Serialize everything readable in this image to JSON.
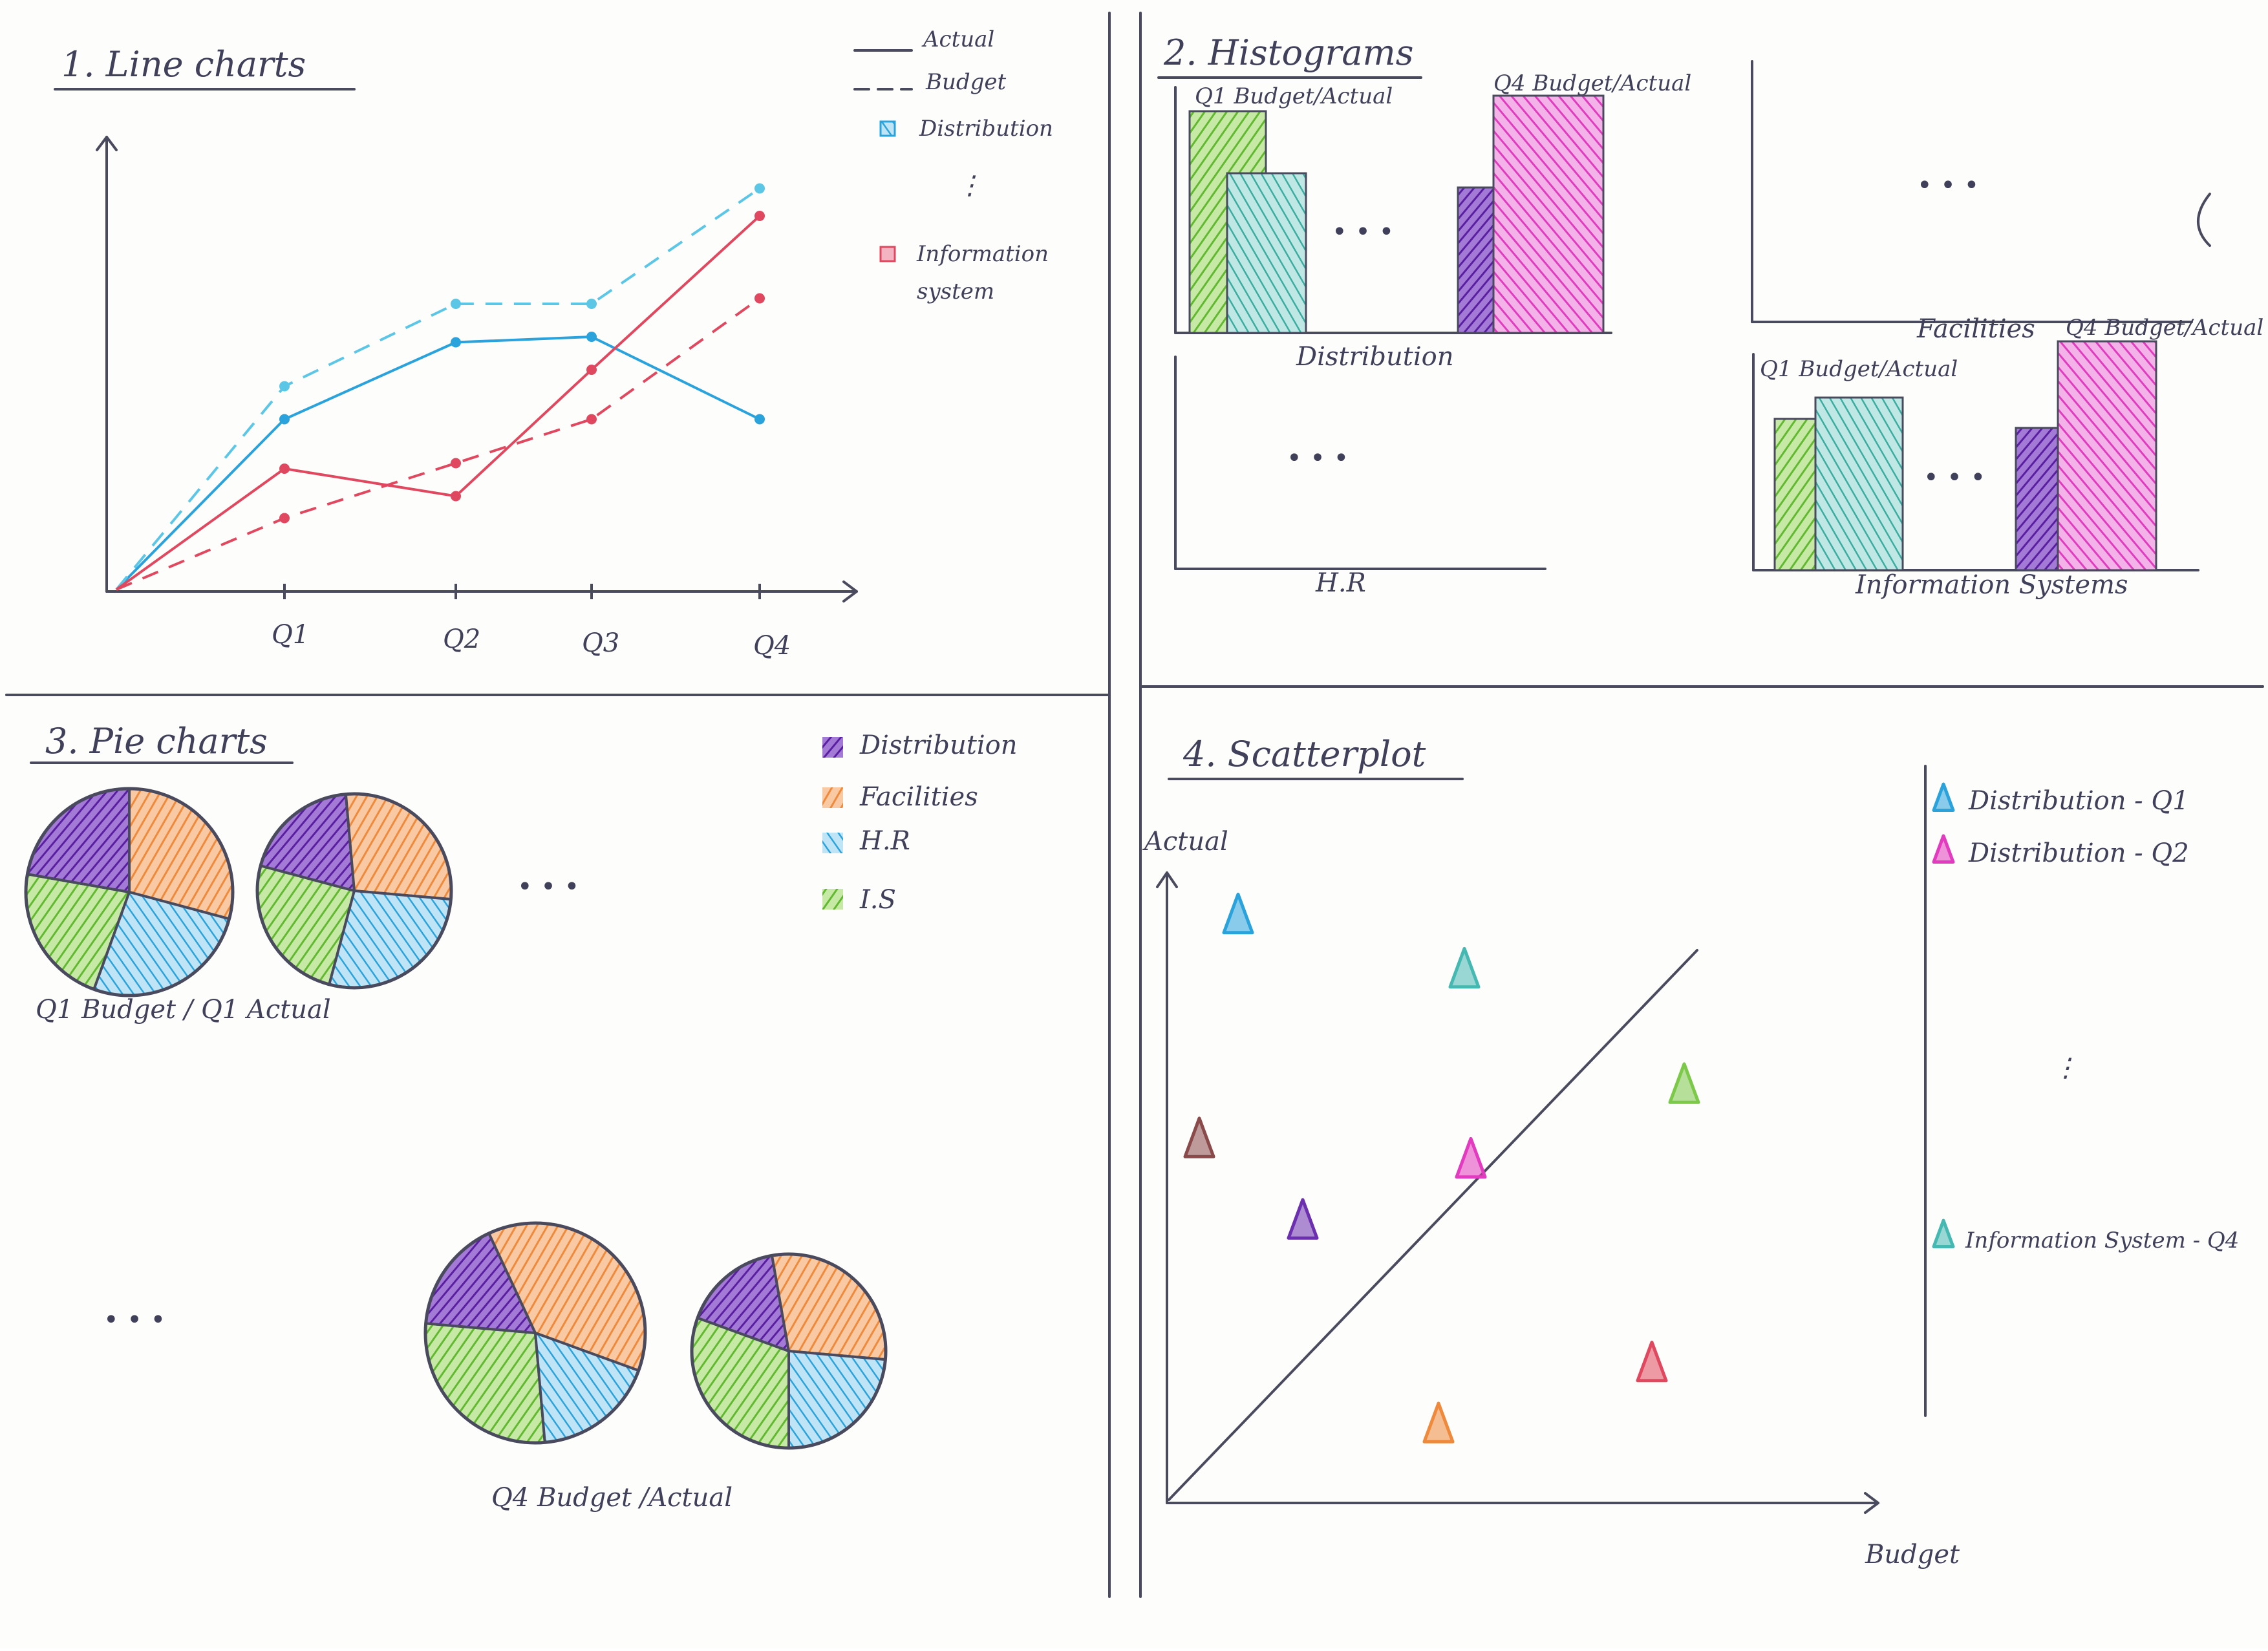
{
  "colors": {
    "blue": "#2aa2dc",
    "blue_light": "#5cc6e6",
    "red": "#e0485f",
    "green": "#7cc94a",
    "teal": "#45b8b2",
    "purple": "#6b2fb0",
    "magenta": "#e23bbf",
    "orange": "#ef8a3c",
    "brown": "#8a4a4a",
    "ink": "#4a4a5e"
  },
  "panel1": {
    "title": "1. Line charts",
    "legend": {
      "actual": "Actual",
      "budget": "Budget",
      "distribution": "Distribution",
      "dots": "⋮",
      "information_system_line1": "Information",
      "information_system_line2": "system"
    },
    "x_ticks": [
      "Q1",
      "Q2",
      "Q3",
      "Q4"
    ],
    "chart_data": {
      "type": "line",
      "categories": [
        "0",
        "Q1",
        "Q2",
        "Q3",
        "Q4"
      ],
      "series": [
        {
          "name": "Distribution",
          "style": "Actual",
          "color": "#2aa2dc",
          "values": [
            0,
            3.1,
            4.5,
            4.6,
            3.1
          ]
        },
        {
          "name": "Distribution",
          "style": "Budget",
          "color": "#5cc6e6",
          "values": [
            0,
            3.7,
            5.2,
            5.2,
            7.3
          ]
        },
        {
          "name": "Information system",
          "style": "Actual",
          "color": "#e0485f",
          "values": [
            0,
            2.2,
            1.7,
            4.0,
            6.8
          ]
        },
        {
          "name": "Information system",
          "style": "Budget",
          "color": "#e0485f",
          "values": [
            0,
            1.3,
            2.3,
            3.1,
            5.3
          ]
        }
      ]
    }
  },
  "panel2": {
    "title": "2. Histograms",
    "distribution": {
      "label": "Distribution",
      "q1_label": "Q1 Budget/Actual",
      "q4_label": "Q4 Budget/Actual",
      "dots": "• • •"
    },
    "facilities": {
      "label": "Facilities",
      "dots": "• • •"
    },
    "hr": {
      "label": "H.R",
      "dots": "• • •"
    },
    "is": {
      "label": "Information Systems",
      "q1_label": "Q1 Budget/Actual",
      "q4_label": "Q4 Budget/Actual",
      "dots": "• • •"
    }
  },
  "panel3": {
    "title": "3. Pie charts",
    "legend": [
      "Distribution",
      "Facilities",
      "H.R",
      "I.S"
    ],
    "legend_colors": [
      "#6b2fb0",
      "#ef8a3c",
      "#2aa2dc",
      "#7cc94a"
    ],
    "top_caption": "Q1 Budget / Q1 Actual",
    "bottom_caption": "Q4 Budget /Actual",
    "dots": "• • •"
  },
  "panel4": {
    "title": "4. Scatterplot",
    "ylabel": "Actual",
    "xlabel": "Budget",
    "legend": [
      "Distribution - Q1",
      "Distribution - Q2",
      "Information System - Q4"
    ],
    "legend_colors": [
      "#2aa2dc",
      "#e23bbf",
      "#45b8b2"
    ],
    "dots": "⋮",
    "chart_data": {
      "type": "scatter",
      "marker": "triangle",
      "points": [
        {
          "color": "#2aa2dc",
          "budget": 1.0,
          "actual": 8.4
        },
        {
          "color": "#45b8b2",
          "budget": 4.5,
          "actual": 7.6
        },
        {
          "color": "#7cc94a",
          "budget": 7.9,
          "actual": 5.9
        },
        {
          "color": "#8a4a4a",
          "budget": 0.4,
          "actual": 5.1
        },
        {
          "color": "#e23bbf",
          "budget": 4.6,
          "actual": 4.8
        },
        {
          "color": "#6b2fb0",
          "budget": 2.0,
          "actual": 3.9
        },
        {
          "color": "#e0485f",
          "budget": 7.4,
          "actual": 1.8
        },
        {
          "color": "#ef8a3c",
          "budget": 4.1,
          "actual": 0.9
        }
      ]
    }
  }
}
